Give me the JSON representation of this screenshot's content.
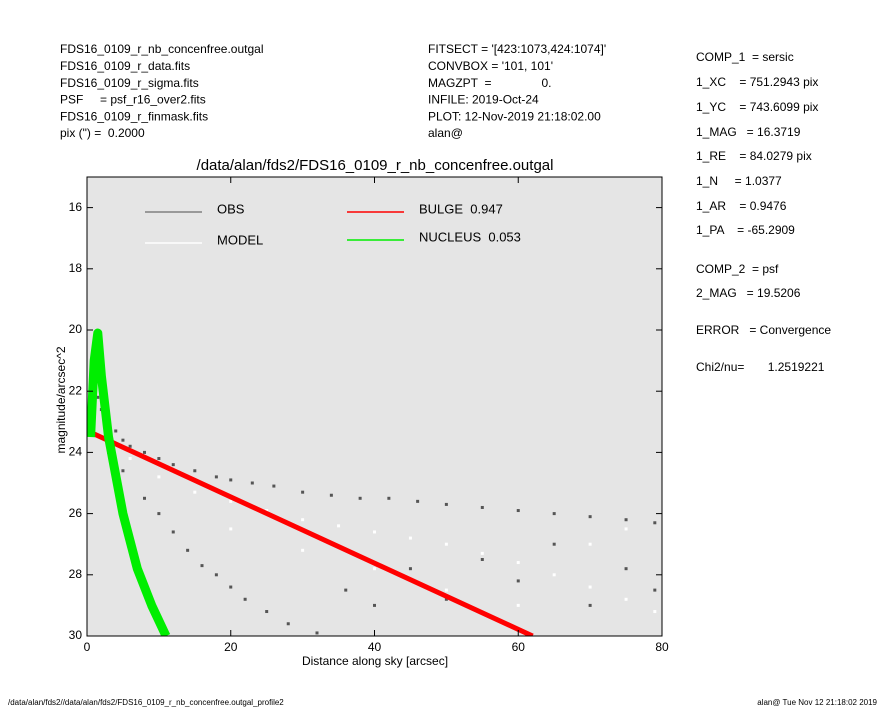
{
  "header": {
    "left": [
      "FDS16_0109_r_nb_concenfree.outgal",
      "FDS16_0109_r_data.fits",
      "FDS16_0109_r_sigma.fits",
      "PSF     = psf_r16_over2.fits",
      "FDS16_0109_r_finmask.fits",
      "pix (\") =  0.2000"
    ],
    "middle": [
      "FITSECT = '[423:1073,424:1074]'",
      "CONVBOX = '101, 101'",
      "MAGZPT  =               0.",
      "INFILE: 2019-Oct-24",
      "PLOT: 12-Nov-2019 21:18:02.00",
      "alan@"
    ],
    "right": [
      "COMP_1  = sersic",
      "1_XC    = 751.2943 pix",
      "1_YC    = 743.6099 pix",
      "1_MAG   = 16.3719",
      "1_RE    = 84.0279 pix",
      "1_N     = 1.0377",
      "1_AR    = 0.9476",
      "1_PA    = -65.2909",
      "COMP_2  = psf",
      "2_MAG   = 19.5206",
      "ERROR   = Convergence",
      "Chi2/nu=       1.2519221"
    ]
  },
  "footer": {
    "left": "/data/alan/fds2//data/alan/fds2/FDS16_0109_r_nb_concenfree.outgal_profile2",
    "right": "alan@  Tue Nov 12 21:18:02 2019"
  },
  "chart_data": {
    "type": "scatter",
    "title": "/data/alan/fds2/FDS16_0109_r_nb_concenfree.outgal",
    "x_label": "Distance along sky [arcsec]",
    "y_label": "magnitude/arcsec^2",
    "xlim": [
      0,
      80
    ],
    "xticks": [
      0,
      20,
      40,
      60,
      80
    ],
    "ylim": [
      15,
      30
    ],
    "yticks": [
      16,
      18,
      20,
      22,
      24,
      26,
      28,
      30
    ],
    "y_inverted": true,
    "background": "#e5e5e5",
    "series": [
      {
        "name": "OBS",
        "type": "scatter",
        "color": "#555555",
        "legend_color": "#808080",
        "x": [
          1.5,
          2,
          3,
          4,
          5,
          6,
          8,
          10,
          12,
          15,
          18,
          20,
          23,
          26,
          30,
          34,
          38,
          42,
          46,
          50,
          55,
          60,
          65,
          70,
          75,
          79,
          3,
          5,
          8,
          10,
          12,
          14,
          16,
          18,
          20,
          22,
          25,
          28,
          32,
          36,
          40,
          45,
          50,
          55,
          60,
          65,
          70,
          75,
          79
        ],
        "values": [
          22.2,
          22.6,
          23.0,
          23.3,
          23.6,
          23.8,
          24.0,
          24.2,
          24.4,
          24.6,
          24.8,
          24.9,
          25.0,
          25.1,
          25.3,
          25.4,
          25.5,
          25.5,
          25.6,
          25.7,
          25.8,
          25.9,
          26.0,
          26.1,
          26.2,
          26.3,
          24.0,
          24.6,
          25.5,
          26.0,
          26.6,
          27.2,
          27.7,
          28.0,
          28.4,
          28.8,
          29.2,
          29.6,
          29.9,
          28.5,
          29.0,
          27.8,
          28.8,
          27.5,
          28.2,
          27.0,
          29.0,
          27.8,
          28.5
        ]
      },
      {
        "name": "MODEL",
        "type": "scatter",
        "color": "#ffffff",
        "legend_color": "#ffffff",
        "x": [
          3,
          6,
          10,
          15,
          20,
          25,
          30,
          35,
          40,
          45,
          50,
          55,
          60,
          65,
          70,
          75,
          79,
          20,
          30,
          40,
          50,
          60,
          70,
          75
        ],
        "values": [
          23.5,
          24.2,
          24.8,
          25.3,
          25.6,
          25.9,
          26.2,
          26.4,
          26.6,
          26.8,
          27.0,
          27.3,
          27.6,
          28.0,
          28.4,
          28.8,
          29.2,
          26.5,
          27.2,
          27.8,
          28.5,
          29.0,
          27.0,
          26.5
        ]
      },
      {
        "name": "BULGE  0.947",
        "type": "line",
        "color": "#ff0000",
        "legend_color": "#ff0000",
        "x": [
          1,
          62
        ],
        "values": [
          23.4,
          30
        ]
      },
      {
        "name": "NUCLEUS  0.053",
        "type": "line",
        "color": "#00ee00",
        "legend_color": "#00ee00",
        "x": [
          0.5,
          1,
          1.5,
          2,
          3,
          5,
          7,
          9,
          11
        ],
        "values": [
          23.5,
          21,
          20.1,
          21.5,
          23.5,
          26,
          27.8,
          29,
          30
        ]
      }
    ]
  }
}
